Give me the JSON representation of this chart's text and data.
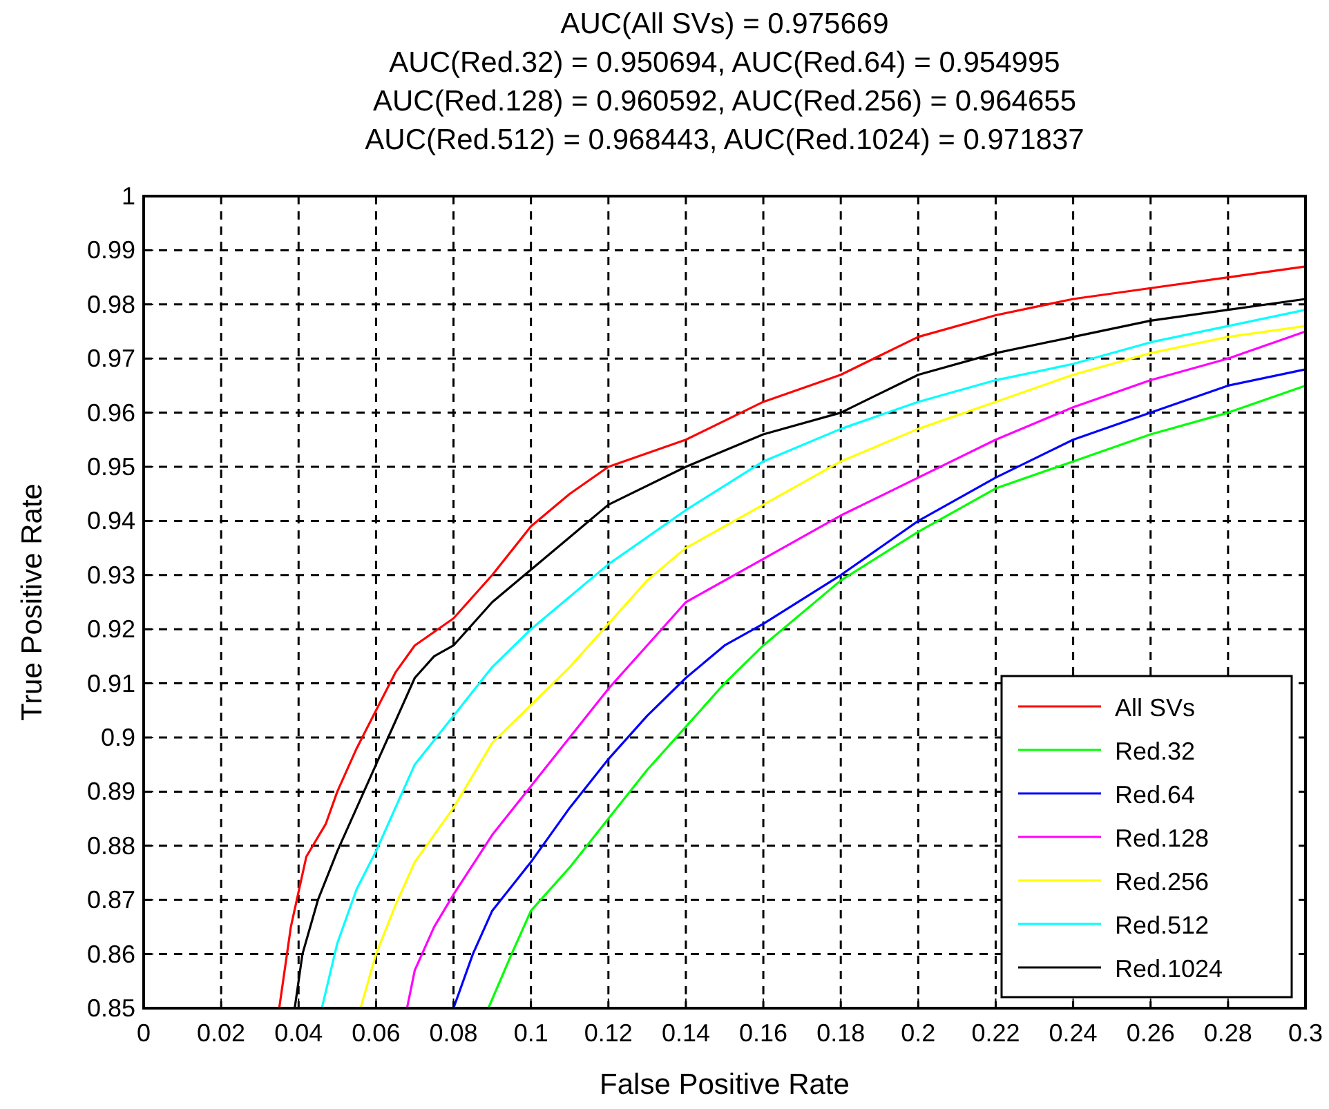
{
  "chart_data": {
    "type": "line",
    "title": "AUC(All SVs) = 0.975669\nAUC(Red.32) = 0.950694, AUC(Red.64) = 0.954995\nAUC(Red.128) = 0.960592, AUC(Red.256) = 0.964655\nAUC(Red.512) = 0.968443, AUC(Red.1024) = 0.971837",
    "xlabel": "False Positive Rate",
    "ylabel": "True Positive Rate",
    "xlim": [
      0,
      0.3
    ],
    "ylim": [
      0.85,
      1
    ],
    "xticks": [
      0,
      0.02,
      0.04,
      0.06,
      0.08,
      0.1,
      0.12,
      0.14,
      0.16,
      0.18,
      0.2,
      0.22,
      0.24,
      0.26,
      0.28,
      0.3
    ],
    "yticks": [
      0.85,
      0.86,
      0.87,
      0.88,
      0.89,
      0.9,
      0.91,
      0.92,
      0.93,
      0.94,
      0.95,
      0.96,
      0.97,
      0.98,
      0.99,
      1
    ],
    "grid": true,
    "legend": "bottom right",
    "marker": "none",
    "line_style": "solid",
    "series": [
      {
        "name": "All SVs",
        "color": "#ff0000",
        "x": [
          0.035,
          0.038,
          0.042,
          0.047,
          0.05,
          0.055,
          0.06,
          0.065,
          0.07,
          0.08,
          0.09,
          0.1,
          0.11,
          0.12,
          0.14,
          0.16,
          0.18,
          0.2,
          0.22,
          0.24,
          0.26,
          0.28,
          0.3
        ],
        "values": [
          0.85,
          0.865,
          0.878,
          0.884,
          0.89,
          0.898,
          0.905,
          0.912,
          0.917,
          0.922,
          0.93,
          0.939,
          0.945,
          0.95,
          0.955,
          0.962,
          0.967,
          0.974,
          0.978,
          0.981,
          0.983,
          0.985,
          0.987
        ]
      },
      {
        "name": "Red.32",
        "color": "#00ff00",
        "x": [
          0.089,
          0.095,
          0.1,
          0.11,
          0.12,
          0.13,
          0.14,
          0.15,
          0.16,
          0.18,
          0.2,
          0.22,
          0.24,
          0.26,
          0.28,
          0.3
        ],
        "values": [
          0.85,
          0.86,
          0.868,
          0.876,
          0.885,
          0.894,
          0.902,
          0.91,
          0.917,
          0.929,
          0.938,
          0.946,
          0.951,
          0.956,
          0.96,
          0.965
        ]
      },
      {
        "name": "Red.64",
        "color": "#0000ff",
        "x": [
          0.08,
          0.085,
          0.09,
          0.1,
          0.11,
          0.12,
          0.13,
          0.14,
          0.15,
          0.16,
          0.18,
          0.2,
          0.22,
          0.24,
          0.26,
          0.28,
          0.3
        ],
        "values": [
          0.85,
          0.86,
          0.868,
          0.877,
          0.887,
          0.896,
          0.904,
          0.911,
          0.917,
          0.921,
          0.93,
          0.94,
          0.948,
          0.955,
          0.96,
          0.965,
          0.968
        ]
      },
      {
        "name": "Red.128",
        "color": "#ff00ff",
        "x": [
          0.068,
          0.07,
          0.075,
          0.08,
          0.09,
          0.1,
          0.11,
          0.12,
          0.13,
          0.14,
          0.16,
          0.18,
          0.2,
          0.22,
          0.24,
          0.26,
          0.28,
          0.3
        ],
        "values": [
          0.85,
          0.857,
          0.865,
          0.871,
          0.882,
          0.891,
          0.9,
          0.909,
          0.917,
          0.925,
          0.933,
          0.941,
          0.948,
          0.955,
          0.961,
          0.966,
          0.97,
          0.975
        ]
      },
      {
        "name": "Red.256",
        "color": "#ffff00",
        "x": [
          0.056,
          0.06,
          0.065,
          0.07,
          0.08,
          0.09,
          0.1,
          0.11,
          0.12,
          0.13,
          0.14,
          0.16,
          0.18,
          0.2,
          0.22,
          0.24,
          0.26,
          0.28,
          0.3
        ],
        "values": [
          0.85,
          0.86,
          0.869,
          0.877,
          0.887,
          0.899,
          0.906,
          0.913,
          0.921,
          0.929,
          0.935,
          0.943,
          0.951,
          0.957,
          0.962,
          0.967,
          0.971,
          0.974,
          0.976
        ]
      },
      {
        "name": "Red.512",
        "color": "#00ffff",
        "x": [
          0.046,
          0.05,
          0.055,
          0.06,
          0.065,
          0.07,
          0.08,
          0.09,
          0.1,
          0.11,
          0.12,
          0.14,
          0.16,
          0.18,
          0.2,
          0.22,
          0.24,
          0.26,
          0.28,
          0.3
        ],
        "values": [
          0.85,
          0.862,
          0.872,
          0.879,
          0.887,
          0.895,
          0.904,
          0.913,
          0.92,
          0.926,
          0.932,
          0.942,
          0.951,
          0.957,
          0.962,
          0.966,
          0.969,
          0.973,
          0.976,
          0.979
        ]
      },
      {
        "name": "Red.1024",
        "color": "#000000",
        "x": [
          0.039,
          0.041,
          0.045,
          0.05,
          0.055,
          0.06,
          0.065,
          0.07,
          0.075,
          0.08,
          0.09,
          0.1,
          0.11,
          0.12,
          0.14,
          0.16,
          0.18,
          0.2,
          0.22,
          0.24,
          0.26,
          0.28,
          0.3
        ],
        "values": [
          0.85,
          0.86,
          0.87,
          0.879,
          0.887,
          0.895,
          0.903,
          0.911,
          0.915,
          0.917,
          0.925,
          0.931,
          0.937,
          0.943,
          0.95,
          0.956,
          0.96,
          0.967,
          0.971,
          0.974,
          0.977,
          0.979,
          0.981
        ]
      }
    ]
  }
}
